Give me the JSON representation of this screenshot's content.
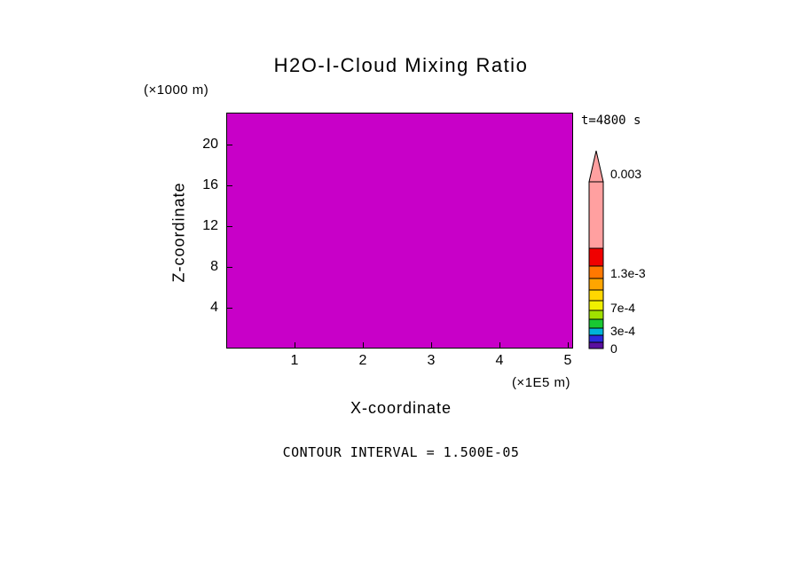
{
  "figure": {
    "title": "H2O-I-Cloud Mixing Ratio",
    "time_label": "t=4800 s",
    "contour_interval_label": "CONTOUR INTERVAL = 1.500E-05",
    "fill_color": "#C800C8",
    "x_axis": {
      "label": "X-coordinate",
      "units": "(×1E5 m)"
    },
    "z_axis": {
      "label": "Z-coordinate",
      "units": "(×1000 m)"
    },
    "colorbar": {
      "arrow_color": "#FFA0A0",
      "labels": [
        {
          "text": "0.003",
          "value": 0.003
        },
        {
          "text": "1.3e-3",
          "value": 0.0013
        },
        {
          "text": "7e-4",
          "value": 0.0007
        },
        {
          "text": "3e-4",
          "value": 0.0003
        },
        {
          "text": "0",
          "value": 0
        }
      ],
      "segments_bottom_to_top": [
        {
          "color": "#5A0FA0",
          "h": 7
        },
        {
          "color": "#2B2BDE",
          "h": 8
        },
        {
          "color": "#00B4D8",
          "h": 8
        },
        {
          "color": "#19C832",
          "h": 10
        },
        {
          "color": "#A0E000",
          "h": 10
        },
        {
          "color": "#F0F000",
          "h": 11
        },
        {
          "color": "#FFD700",
          "h": 12
        },
        {
          "color": "#FFA500",
          "h": 13
        },
        {
          "color": "#FF7800",
          "h": 14
        },
        {
          "color": "#F00000",
          "h": 20
        },
        {
          "color": "#FFA0A0",
          "h": 75
        }
      ]
    }
  },
  "chart_data": {
    "type": "heatmap",
    "title": "H2O-I-Cloud Mixing Ratio",
    "time_annotation": "t=4800 s",
    "x": {
      "label": "X-coordinate",
      "units": "(×1E5 m)",
      "tick_values": [
        1,
        2,
        3,
        4,
        5
      ],
      "approx_range": [
        0,
        5.1
      ]
    },
    "z": {
      "label": "Z-coordinate",
      "units": "(×1000 m)",
      "tick_values": [
        20,
        16,
        12,
        8,
        4
      ],
      "approx_range": [
        0,
        23
      ]
    },
    "field": {
      "description": "uniform magenta fill over entire plot domain, no contour lines visible",
      "uniform_fill_color": "#C800C8"
    },
    "contour_interval": 1.5e-05,
    "colorbar": {
      "position": "right",
      "tick_labels": [
        "0.003",
        "1.3e-3",
        "7e-4",
        "3e-4",
        "0"
      ],
      "value_range": [
        0,
        0.003
      ],
      "arrow_top": true
    },
    "grid": false,
    "legend_position": "right"
  }
}
